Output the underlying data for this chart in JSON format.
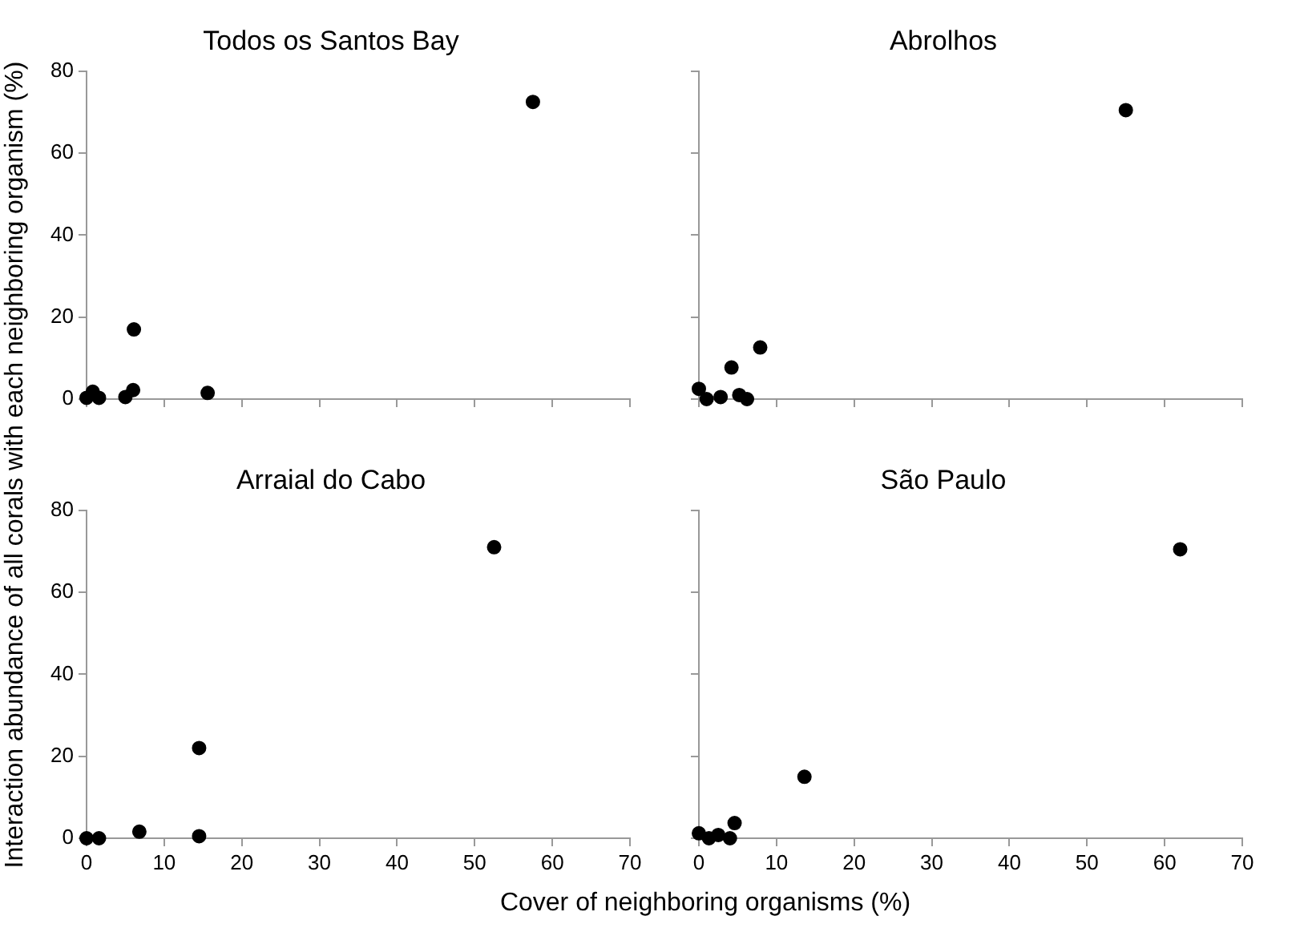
{
  "chart_data": [
    {
      "type": "scatter",
      "title": "Todos os Santos Bay",
      "ylabel": "Interaction abundance of all corals with each neighboring organism (%)",
      "marker": "circle",
      "grid": false,
      "legend": false,
      "tick_labels": "y",
      "xlim": [
        0,
        70
      ],
      "xticks": [
        0,
        10,
        20,
        30,
        40,
        50,
        60,
        70
      ],
      "ylim": [
        0,
        80
      ],
      "yticks": [
        0,
        20,
        40,
        60,
        80
      ],
      "series": [
        {
          "color": "#000000",
          "x": [
            0,
            0.8,
            1.6,
            5,
            6,
            6.1,
            15.6,
            57.5
          ],
          "values": [
            0.3,
            1.8,
            0.3,
            0.5,
            2.2,
            17,
            1.5,
            72.5
          ]
        }
      ]
    },
    {
      "type": "scatter",
      "title": "Abrolhos",
      "marker": "circle",
      "grid": false,
      "legend": false,
      "tick_labels": false,
      "xlim": [
        0,
        70
      ],
      "xticks": [
        0,
        10,
        20,
        30,
        40,
        50,
        60,
        70
      ],
      "ylim": [
        0,
        80
      ],
      "yticks": [
        0,
        20,
        40,
        60,
        80
      ],
      "series": [
        {
          "color": "#000000",
          "x": [
            0,
            1,
            2.8,
            4.2,
            5.2,
            6.2,
            7.9,
            55
          ],
          "values": [
            2.5,
            0,
            0.5,
            7.7,
            1,
            0,
            12.6,
            70.5
          ]
        }
      ]
    },
    {
      "type": "scatter",
      "title": "Arraial do Cabo",
      "xlabel": "Cover of neighboring organisms (%)",
      "marker": "circle",
      "grid": false,
      "legend": false,
      "xlim": [
        0,
        70
      ],
      "xticks": [
        0,
        10,
        20,
        30,
        40,
        50,
        60,
        70
      ],
      "ylim": [
        0,
        80
      ],
      "yticks": [
        0,
        20,
        40,
        60,
        80
      ],
      "series": [
        {
          "color": "#000000",
          "x": [
            0,
            1.6,
            6.8,
            14.5,
            14.5,
            52.5
          ],
          "values": [
            0,
            0,
            1.6,
            22,
            0.5,
            71
          ]
        }
      ]
    },
    {
      "type": "scatter",
      "title": "São Paulo",
      "marker": "circle",
      "grid": false,
      "legend": false,
      "tick_labels": "x",
      "xlim": [
        0,
        70
      ],
      "xticks": [
        0,
        10,
        20,
        30,
        40,
        50,
        60,
        70
      ],
      "ylim": [
        0,
        80
      ],
      "yticks": [
        0,
        20,
        40,
        60,
        80
      ],
      "series": [
        {
          "color": "#000000",
          "x": [
            0,
            1.3,
            2.5,
            4,
            4.6,
            13.6,
            62
          ],
          "values": [
            1.2,
            0,
            0.8,
            0,
            3.7,
            15,
            70.5
          ]
        }
      ]
    }
  ]
}
